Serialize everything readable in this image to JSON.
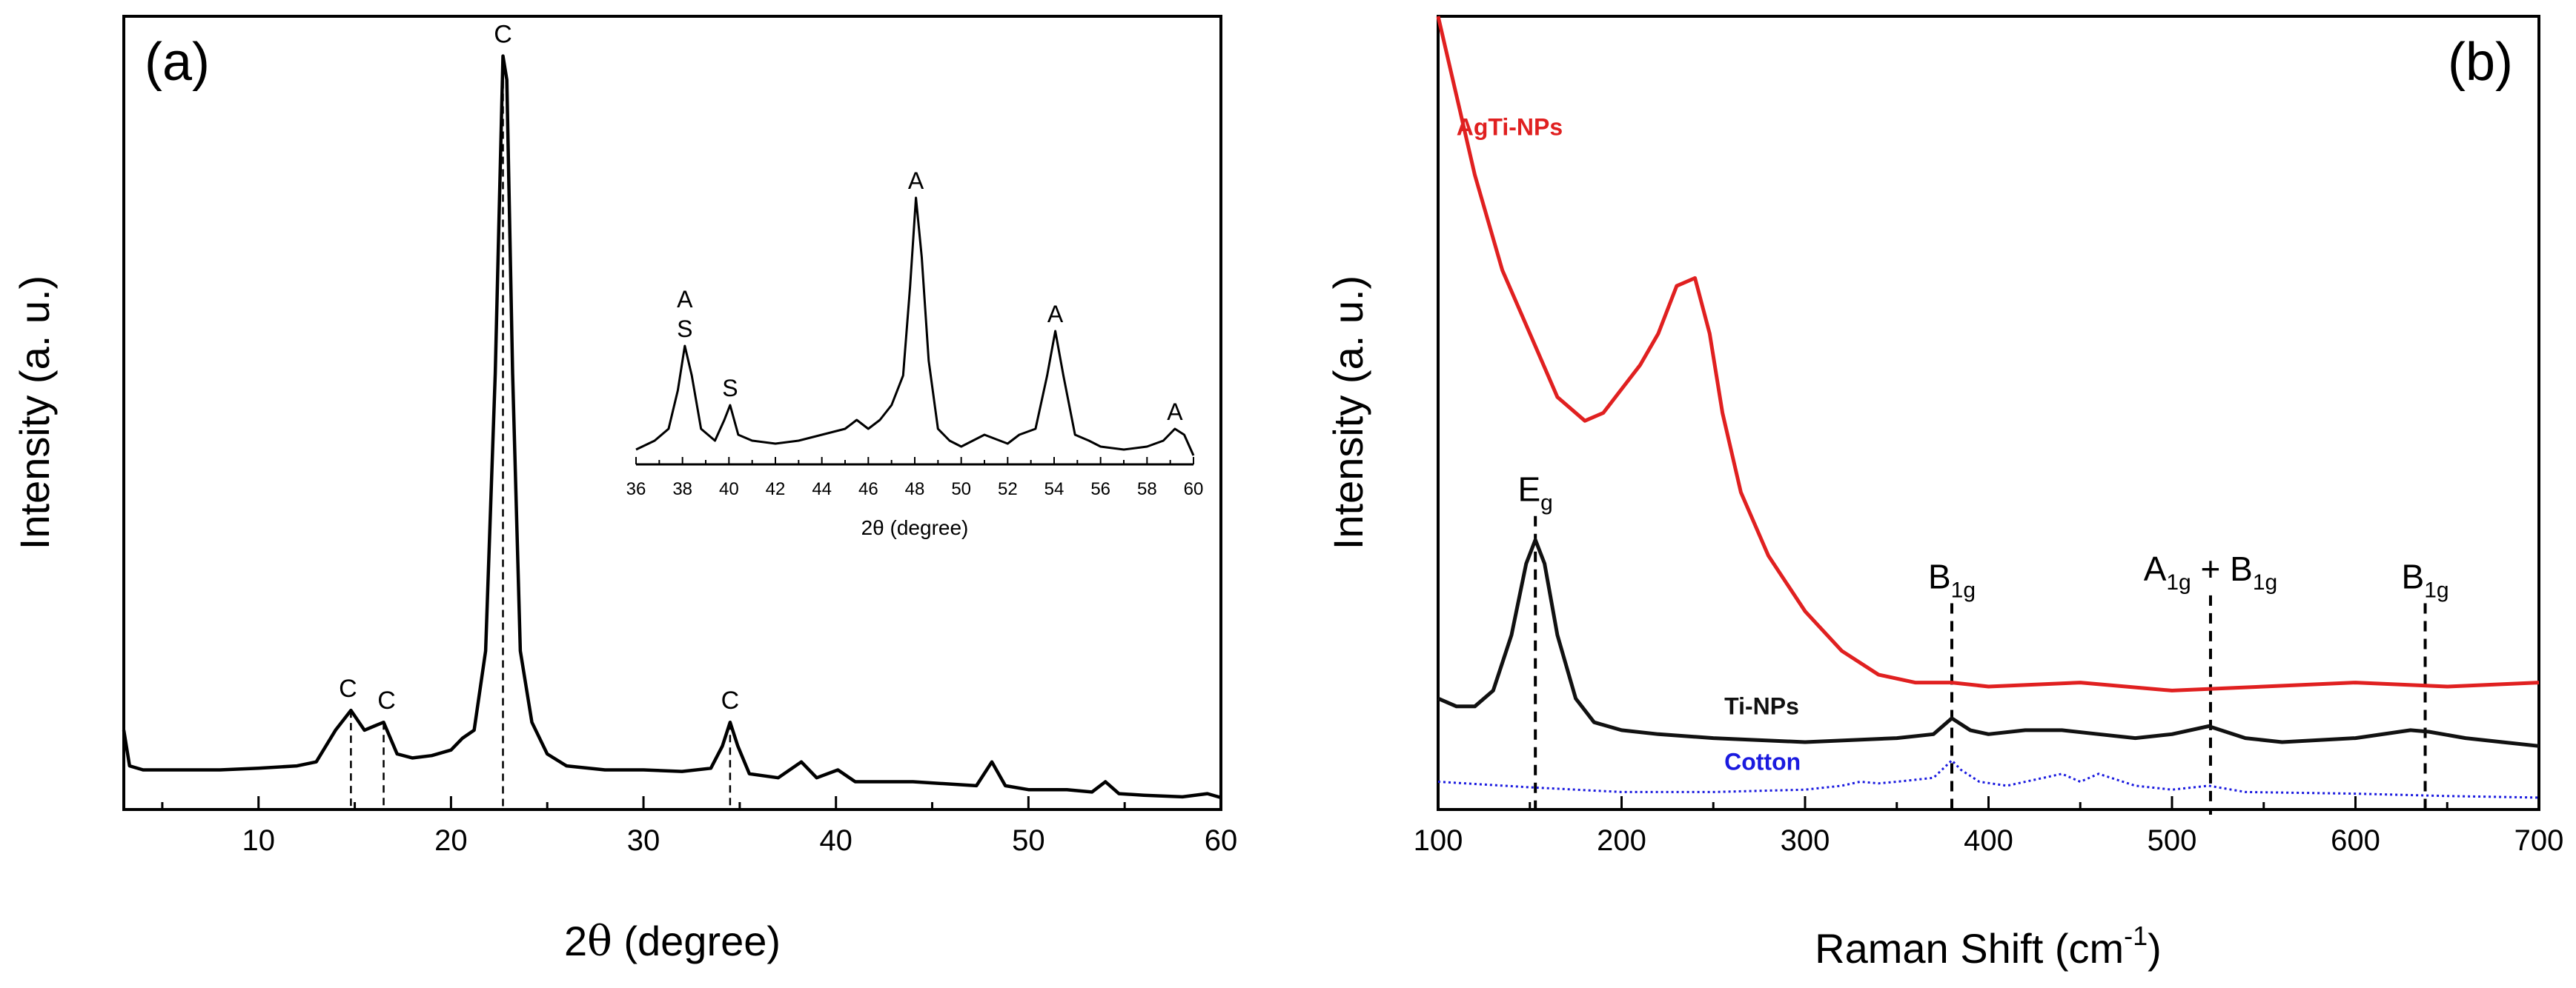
{
  "panels": {
    "a": {
      "tag": "(a)",
      "xlabel_pre": "2",
      "xlabel_theta": "θ",
      "xlabel_post": " (degree)",
      "ylabel": "Intensity (a. u.)",
      "xticks": [
        "10",
        "20",
        "30",
        "40",
        "50",
        "60"
      ],
      "inset": {
        "xlabel": "2θ (degree)",
        "xticks": [
          "36",
          "38",
          "40",
          "42",
          "44",
          "46",
          "48",
          "50",
          "52",
          "54",
          "56",
          "58",
          "60"
        ]
      }
    },
    "b": {
      "tag": "(b)",
      "xlabel_pre": "Raman Shift (cm",
      "xlabel_sup": "-1",
      "xlabel_post": ")",
      "ylabel": "Intensity (a. u.)",
      "xticks": [
        "100",
        "200",
        "300",
        "400",
        "500",
        "600",
        "700"
      ]
    }
  },
  "chart_data": [
    {
      "type": "line",
      "panel": "(a)",
      "xlabel": "2θ (degree)",
      "ylabel": "Intensity (a. u.)",
      "xlim": [
        3,
        60
      ],
      "ylim": [
        0,
        1
      ],
      "series": [
        {
          "color": "#000000",
          "x": [
            3,
            3.3,
            4,
            6,
            8,
            10,
            12,
            13,
            14,
            14.8,
            15.5,
            16,
            16.5,
            17.2,
            18,
            19,
            20,
            20.6,
            21.2,
            21.8,
            22.3,
            22.7,
            22.9,
            23.2,
            23.6,
            24.2,
            25,
            26,
            28,
            30,
            32,
            33.5,
            34.1,
            34.5,
            34.9,
            35.5,
            37,
            38.2,
            39,
            40.1,
            41,
            44,
            47.3,
            48.1,
            48.8,
            50,
            52,
            53.3,
            54,
            54.7,
            56,
            58,
            59.3,
            60
          ],
          "y": [
            0.1,
            0.055,
            0.05,
            0.05,
            0.05,
            0.052,
            0.055,
            0.06,
            0.1,
            0.125,
            0.1,
            0.105,
            0.11,
            0.07,
            0.065,
            0.068,
            0.075,
            0.09,
            0.1,
            0.2,
            0.55,
            0.95,
            0.92,
            0.55,
            0.2,
            0.11,
            0.07,
            0.055,
            0.05,
            0.05,
            0.048,
            0.052,
            0.08,
            0.11,
            0.08,
            0.045,
            0.04,
            0.06,
            0.04,
            0.05,
            0.035,
            0.035,
            0.03,
            0.06,
            0.03,
            0.025,
            0.025,
            0.022,
            0.035,
            0.02,
            0.018,
            0.016,
            0.02,
            0.015
          ]
        }
      ],
      "reference_lines_x": [
        14.8,
        16.5,
        22.7,
        34.5
      ],
      "annotations": [
        {
          "text": "C",
          "x": 14.8
        },
        {
          "text": "C",
          "x": 16.5
        },
        {
          "text": "C",
          "x": 22.7
        },
        {
          "text": "C",
          "x": 34.5
        }
      ]
    },
    {
      "type": "line",
      "panel": "(a) inset",
      "xlabel": "2θ (degree)",
      "xlim": [
        36,
        60
      ],
      "ylim": [
        0,
        1
      ],
      "series": [
        {
          "color": "#000000",
          "x": [
            36,
            36.8,
            37.4,
            37.8,
            38.1,
            38.4,
            38.8,
            39.4,
            39.8,
            40.05,
            40.4,
            41,
            42,
            43,
            44,
            45,
            45.5,
            46,
            46.5,
            47,
            47.5,
            47.8,
            48.05,
            48.3,
            48.6,
            49,
            49.5,
            50,
            51,
            52,
            52.5,
            53.2,
            53.7,
            54.05,
            54.4,
            54.9,
            55.5,
            56,
            57,
            58,
            58.7,
            59.2,
            59.6,
            60
          ],
          "y": [
            0.05,
            0.08,
            0.12,
            0.25,
            0.4,
            0.3,
            0.12,
            0.08,
            0.15,
            0.2,
            0.1,
            0.08,
            0.07,
            0.08,
            0.1,
            0.12,
            0.15,
            0.12,
            0.15,
            0.2,
            0.3,
            0.6,
            0.9,
            0.7,
            0.35,
            0.12,
            0.08,
            0.06,
            0.1,
            0.07,
            0.1,
            0.12,
            0.3,
            0.45,
            0.3,
            0.1,
            0.08,
            0.06,
            0.05,
            0.06,
            0.08,
            0.12,
            0.1,
            0.03
          ]
        }
      ],
      "annotations": [
        {
          "text": "A",
          "x": 38.1,
          "row": 1
        },
        {
          "text": "S",
          "x": 38.1,
          "row": 0
        },
        {
          "text": "S",
          "x": 40.05,
          "row": 0
        },
        {
          "text": "A",
          "x": 48.05,
          "row": 0
        },
        {
          "text": "A",
          "x": 54.05,
          "row": 0
        },
        {
          "text": "A",
          "x": 59.2,
          "row": 0
        }
      ]
    },
    {
      "type": "line",
      "panel": "(b)",
      "xlabel": "Raman Shift (cm-1)",
      "ylabel": "Intensity (a. u.)",
      "xlim": [
        100,
        700
      ],
      "ylim": [
        0,
        1
      ],
      "series": [
        {
          "name": "AgTi-NPs",
          "color": "#e02020",
          "x": [
            100,
            110,
            120,
            135,
            150,
            165,
            180,
            190,
            200,
            210,
            220,
            230,
            240,
            248,
            255,
            265,
            280,
            300,
            320,
            340,
            360,
            380,
            400,
            450,
            500,
            550,
            600,
            650,
            700
          ],
          "y": [
            1.0,
            0.9,
            0.8,
            0.68,
            0.6,
            0.52,
            0.49,
            0.5,
            0.53,
            0.56,
            0.6,
            0.66,
            0.67,
            0.6,
            0.5,
            0.4,
            0.32,
            0.25,
            0.2,
            0.17,
            0.16,
            0.16,
            0.155,
            0.16,
            0.15,
            0.155,
            0.16,
            0.155,
            0.16
          ]
        },
        {
          "name": "Ti-NPs",
          "color": "#111111",
          "x": [
            100,
            110,
            120,
            130,
            140,
            148,
            153,
            158,
            165,
            175,
            185,
            200,
            220,
            250,
            300,
            350,
            370,
            380,
            390,
            400,
            420,
            440,
            460,
            480,
            500,
            520,
            540,
            560,
            600,
            630,
            640,
            660,
            680,
            700
          ],
          "y": [
            0.14,
            0.13,
            0.13,
            0.15,
            0.22,
            0.31,
            0.34,
            0.31,
            0.22,
            0.14,
            0.11,
            0.1,
            0.095,
            0.09,
            0.085,
            0.09,
            0.095,
            0.115,
            0.1,
            0.095,
            0.1,
            0.1,
            0.095,
            0.09,
            0.095,
            0.105,
            0.09,
            0.085,
            0.09,
            0.1,
            0.098,
            0.09,
            0.085,
            0.08
          ]
        },
        {
          "name": "Cotton",
          "color": "#1a1adf",
          "x": [
            100,
            150,
            200,
            250,
            300,
            320,
            330,
            340,
            350,
            370,
            380,
            385,
            395,
            410,
            430,
            440,
            450,
            460,
            480,
            500,
            520,
            540,
            600,
            650,
            700
          ],
          "y": [
            0.035,
            0.028,
            0.022,
            0.022,
            0.025,
            0.03,
            0.035,
            0.033,
            0.035,
            0.04,
            0.062,
            0.05,
            0.035,
            0.03,
            0.04,
            0.045,
            0.035,
            0.045,
            0.03,
            0.025,
            0.03,
            0.022,
            0.02,
            0.017,
            0.015
          ]
        }
      ],
      "reference_lines_x": [
        153,
        380,
        521,
        638
      ],
      "annotations": [
        {
          "text": "E",
          "sub": "g",
          "x": 153
        },
        {
          "text": "B",
          "sub": "1g",
          "x": 380
        },
        {
          "text": "A",
          "sub": "1g",
          "mid": " + B",
          "sub2": "1g",
          "x": 521
        },
        {
          "text": "B",
          "sub": "1g",
          "x": 638
        }
      ]
    }
  ]
}
